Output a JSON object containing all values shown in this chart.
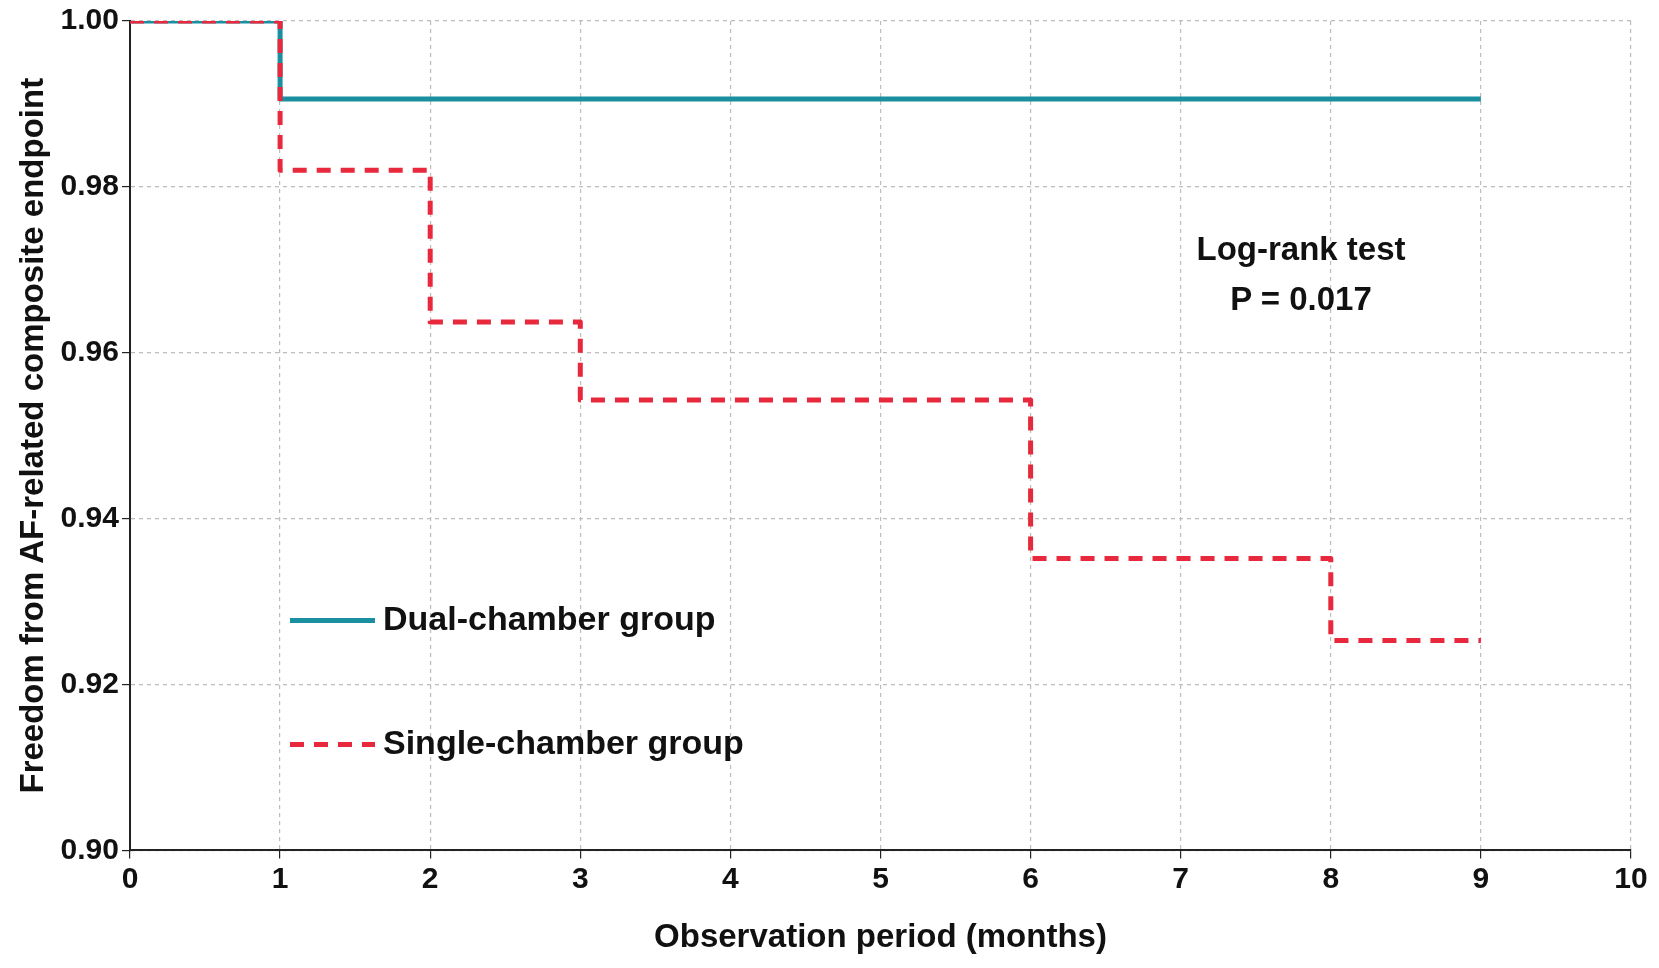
{
  "chart_data": {
    "type": "step",
    "xlabel": "Observation period (months)",
    "ylabel": "Freedom from AF-related composite endpoint",
    "series": [
      {
        "name": "Single-chamber group",
        "color": "#e8283c",
        "line_style": "dashed",
        "x": [
          0,
          1,
          2,
          3,
          6,
          8,
          9
        ],
        "values": [
          1.0,
          0.982,
          0.9637,
          0.9543,
          0.9352,
          0.9253,
          0.9253
        ]
      },
      {
        "name": "Dual-chamber group",
        "color": "#1a8fa0",
        "line_style": "solid",
        "x": [
          0,
          1,
          9
        ],
        "values": [
          1.0,
          0.9906,
          0.9906
        ]
      }
    ],
    "xlim": [
      0,
      10
    ],
    "xticks": [
      0,
      1,
      2,
      3,
      4,
      5,
      6,
      7,
      8,
      9,
      10
    ],
    "ylim": [
      0.9,
      1.0
    ],
    "yticks": [
      {
        "value": 0.9,
        "label": "0.90"
      },
      {
        "value": 0.92,
        "label": "0.92"
      },
      {
        "value": 0.94,
        "label": "0.94"
      },
      {
        "value": 0.96,
        "label": "0.96"
      },
      {
        "value": 0.98,
        "label": "0.98"
      },
      {
        "value": 1.0,
        "label": "1.00"
      }
    ],
    "grid": true,
    "legend": "bottom left",
    "marker": "none",
    "annotations": [
      "Log-rank test",
      "P = 0.017"
    ]
  }
}
